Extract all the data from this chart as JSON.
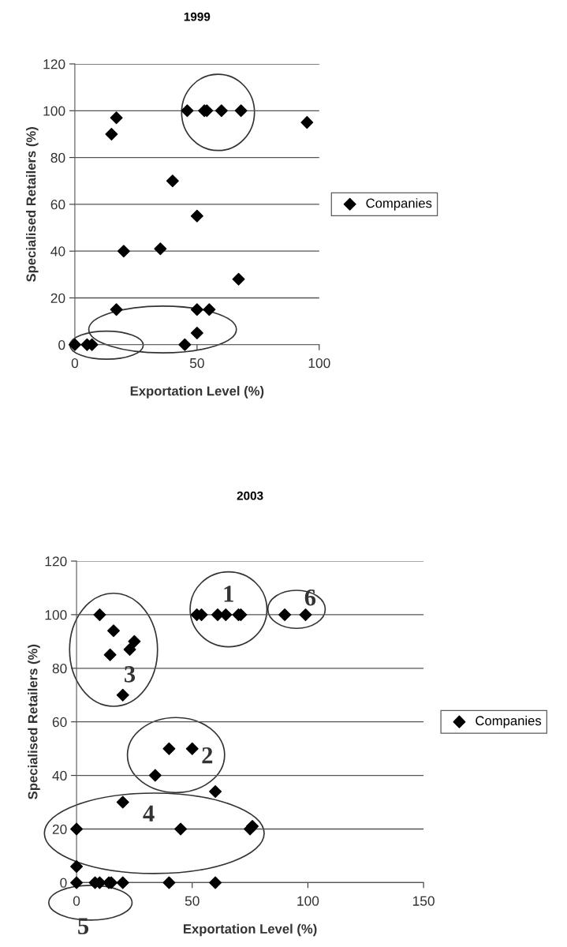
{
  "chart_data": [
    {
      "type": "scatter",
      "title": "1999",
      "xlabel": "Exportation Level (%)",
      "ylabel": "Specialised Retailers (%)",
      "xlim": [
        0,
        100
      ],
      "xticks": [
        0,
        50,
        100
      ],
      "ylim": [
        0,
        120
      ],
      "yticks": [
        0,
        20,
        40,
        60,
        80,
        100,
        120
      ],
      "grid": "y",
      "legend": "right",
      "marker": "diamond",
      "series": [
        {
          "name": "Companies",
          "color": "#000000",
          "x": [
            0,
            5,
            7,
            17,
            20,
            35,
            40,
            15,
            17,
            46,
            53,
            54,
            60,
            68,
            95,
            50,
            67,
            50,
            55,
            50,
            45
          ],
          "values": [
            0,
            0,
            0,
            15,
            40,
            41,
            70,
            90,
            97,
            100,
            100,
            100,
            100,
            100,
            95,
            55,
            28,
            15,
            15,
            5,
            0
          ]
        }
      ]
    },
    {
      "type": "scatter",
      "title": "2003",
      "xlabel": "Exportation Level (%)",
      "ylabel": "Specialised Retailers (%)",
      "xlim": [
        0,
        150
      ],
      "xticks": [
        0,
        50,
        100,
        150
      ],
      "ylim": [
        0,
        120
      ],
      "yticks": [
        0,
        20,
        40,
        60,
        80,
        100,
        120
      ],
      "grid": "y",
      "legend": "right",
      "marker": "diamond",
      "series": [
        {
          "name": "Companies",
          "color": "#000000",
          "x": [
            10,
            16,
            14.5,
            23,
            25,
            20,
            52,
            54,
            61,
            64.5,
            70,
            71,
            90,
            99,
            40,
            50,
            34,
            60,
            20,
            0,
            45,
            75,
            76,
            0,
            0,
            8,
            10,
            14,
            15,
            20,
            40,
            60
          ],
          "values": [
            100,
            94,
            85,
            87,
            90,
            70,
            100,
            100,
            100,
            100,
            100,
            100,
            100,
            100,
            50,
            50,
            40,
            34,
            30,
            20,
            20,
            20,
            21,
            6,
            0,
            0,
            0,
            0,
            0,
            0,
            0,
            0
          ]
        }
      ],
      "annotations": [
        "1",
        "2",
        "3",
        "4",
        "5",
        "6"
      ]
    }
  ]
}
